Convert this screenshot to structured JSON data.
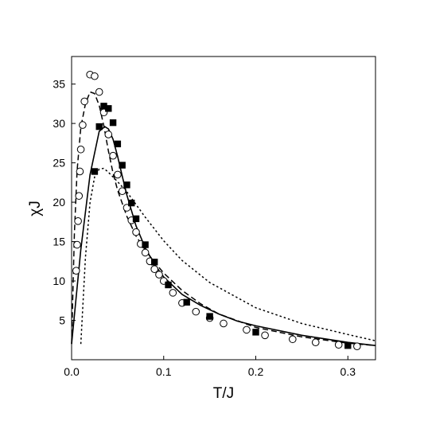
{
  "chart_data": {
    "type": "scatter",
    "title": "",
    "xlabel": "T/J",
    "ylabel": "χJ",
    "xlim": [
      0.0,
      0.33
    ],
    "ylim": [
      0.0,
      38.5
    ],
    "xticks": [
      0.0,
      0.1,
      0.2,
      0.3
    ],
    "xtick_labels": [
      "0.0",
      "0.1",
      "0.2",
      "0.3"
    ],
    "yticks": [
      5,
      10,
      15,
      20,
      25,
      30,
      35
    ],
    "ytick_labels": [
      "5",
      "10",
      "15",
      "20",
      "25",
      "30",
      "35"
    ],
    "grid": false,
    "legend": "none",
    "series": [
      {
        "style": "solid-line",
        "color": "#000000",
        "x": [
          0.0,
          0.01,
          0.02,
          0.03,
          0.036,
          0.04,
          0.045,
          0.05,
          0.055,
          0.06,
          0.07,
          0.08,
          0.09,
          0.1,
          0.12,
          0.14,
          0.16,
          0.18,
          0.2,
          0.25,
          0.3,
          0.33
        ],
        "y": [
          2.0,
          14.0,
          23.5,
          29.0,
          29.6,
          29.3,
          28.0,
          25.8,
          23.3,
          20.9,
          17.0,
          14.2,
          12.1,
          10.5,
          8.3,
          6.9,
          5.8,
          4.9,
          4.3,
          3.1,
          2.2,
          1.8
        ]
      },
      {
        "style": "dashed-line",
        "color": "#000000",
        "x": [
          0.0,
          0.003,
          0.006,
          0.01,
          0.015,
          0.02,
          0.025,
          0.03,
          0.035,
          0.04,
          0.045,
          0.05,
          0.06,
          0.07,
          0.08,
          0.09,
          0.1,
          0.12,
          0.14,
          0.16,
          0.2,
          0.25,
          0.3,
          0.33
        ],
        "y": [
          2.0,
          16.0,
          24.0,
          29.5,
          32.5,
          34.0,
          33.8,
          32.3,
          29.7,
          26.5,
          23.7,
          21.5,
          18.2,
          15.7,
          13.9,
          12.4,
          11.0,
          8.8,
          7.1,
          5.8,
          4.1,
          2.9,
          2.1,
          1.8
        ]
      },
      {
        "style": "dotted-line",
        "color": "#000000",
        "x": [
          0.01,
          0.015,
          0.02,
          0.025,
          0.03,
          0.035,
          0.04,
          0.045,
          0.05,
          0.06,
          0.07,
          0.08,
          0.1,
          0.12,
          0.15,
          0.2,
          0.25,
          0.3,
          0.33
        ],
        "y": [
          2.0,
          13.0,
          20.0,
          23.2,
          24.2,
          24.3,
          23.8,
          23.2,
          22.6,
          21.3,
          19.7,
          18.1,
          15.1,
          12.6,
          9.8,
          6.6,
          4.6,
          3.2,
          2.4
        ]
      },
      {
        "style": "open-circles",
        "color": "#000000",
        "x": [
          0.005,
          0.006,
          0.007,
          0.008,
          0.009,
          0.01,
          0.012,
          0.014,
          0.02,
          0.025,
          0.03,
          0.035,
          0.04,
          0.045,
          0.05,
          0.055,
          0.06,
          0.065,
          0.07,
          0.075,
          0.08,
          0.085,
          0.09,
          0.095,
          0.1,
          0.11,
          0.12,
          0.135,
          0.15,
          0.165,
          0.19,
          0.21,
          0.24,
          0.265,
          0.29,
          0.31
        ],
        "y": [
          11.3,
          14.6,
          17.6,
          20.8,
          23.9,
          26.7,
          29.8,
          32.8,
          36.2,
          36.0,
          34.0,
          31.4,
          28.6,
          25.9,
          23.5,
          21.4,
          19.3,
          17.7,
          16.2,
          14.7,
          13.6,
          12.5,
          11.5,
          10.8,
          10.0,
          8.5,
          7.2,
          6.1,
          5.3,
          4.6,
          3.8,
          3.1,
          2.6,
          2.2,
          1.9,
          1.7
        ]
      },
      {
        "style": "filled-squares",
        "color": "#000000",
        "x": [
          0.025,
          0.03,
          0.035,
          0.04,
          0.045,
          0.05,
          0.055,
          0.06,
          0.065,
          0.07,
          0.08,
          0.09,
          0.105,
          0.125,
          0.15,
          0.2,
          0.3
        ],
        "y": [
          23.9,
          29.6,
          32.2,
          31.9,
          30.1,
          27.4,
          24.7,
          22.2,
          19.9,
          17.9,
          14.6,
          12.4,
          9.5,
          7.3,
          5.5,
          3.5,
          1.8
        ]
      }
    ]
  }
}
